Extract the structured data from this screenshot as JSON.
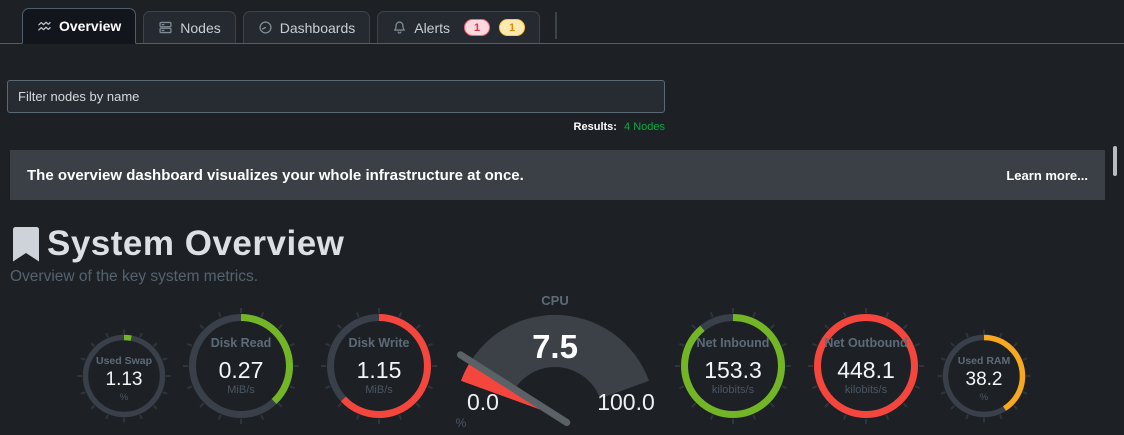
{
  "colors": {
    "green": "#72b626",
    "red": "#f5463d",
    "orange": "#f7a81f",
    "track": "#394049",
    "tick": "#2e353d",
    "fan": "#3b4147",
    "needle": "#5a6167",
    "results_green": "#00ab44"
  },
  "tabs": [
    {
      "label": "Overview",
      "icon": "area-chart-icon",
      "active": true
    },
    {
      "label": "Nodes",
      "icon": "servers-icon",
      "active": false
    },
    {
      "label": "Dashboards",
      "icon": "gauge-icon",
      "active": false
    },
    {
      "label": "Alerts",
      "icon": "bell-icon",
      "active": false,
      "badges": [
        {
          "count": "1",
          "type": "critical"
        },
        {
          "count": "1",
          "type": "warning"
        }
      ]
    }
  ],
  "filter": {
    "placeholder": "Filter nodes by name"
  },
  "results": {
    "label": "Results:",
    "value": "4 Nodes"
  },
  "banner": {
    "message": "The overview dashboard visualizes your whole infrastructure at once.",
    "link_label": "Learn more..."
  },
  "section": {
    "title": "System Overview",
    "subtitle": "Overview of the key system metrics."
  },
  "gauges": [
    {
      "label": "Used Swap",
      "value": "1.13",
      "unit": "%",
      "color": "#72b626",
      "arc_pct": 3,
      "type": "ring",
      "size": "small"
    },
    {
      "label": "Disk Read",
      "value": "0.27",
      "unit": "MiB/s",
      "color": "#72b626",
      "arc_pct": 38,
      "type": "ring",
      "size": "large"
    },
    {
      "label": "Disk Write",
      "value": "1.15",
      "unit": "MiB/s",
      "color": "#f5463d",
      "arc_pct": 63,
      "type": "ring",
      "size": "large"
    },
    {
      "label": "CPU",
      "value": "7.5",
      "unit": "%",
      "min": "0.0",
      "max": "100.0",
      "color": "#f5463d",
      "pct": 7.5,
      "type": "gauge"
    },
    {
      "label": "Net Inbound",
      "value": "153.3",
      "unit": "kilobits/s",
      "color": "#72b626",
      "arc_pct": 89,
      "type": "ring",
      "size": "large"
    },
    {
      "label": "Net Outbound",
      "value": "448.1",
      "unit": "kilobits/s",
      "color": "#f5463d",
      "arc_pct": 100,
      "type": "ring",
      "size": "large"
    },
    {
      "label": "Used RAM",
      "value": "38.2",
      "unit": "%",
      "color": "#f7a81f",
      "arc_pct": 41,
      "type": "ring",
      "size": "small"
    }
  ]
}
